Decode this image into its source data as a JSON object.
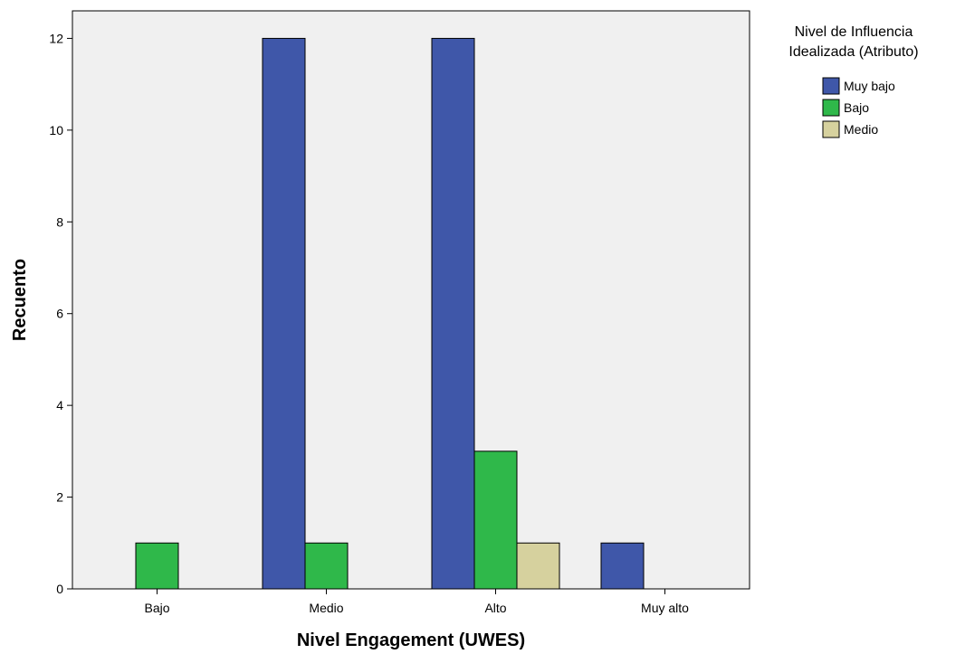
{
  "chart_data": {
    "type": "bar",
    "xlabel": "Nivel Engagement (UWES)",
    "ylabel": "Recuento",
    "categories": [
      "Bajo",
      "Medio",
      "Alto",
      "Muy alto"
    ],
    "ylim": [
      0,
      12.6
    ],
    "yticks": [
      0,
      2,
      4,
      6,
      8,
      10,
      12
    ],
    "legend": {
      "title_lines": [
        "Nivel de Influencia",
        "Idealizada (Atributo)"
      ],
      "placement": "right"
    },
    "series": [
      {
        "name": "Muy bajo",
        "color": "#3F57A9",
        "values": [
          0,
          12,
          12,
          1
        ]
      },
      {
        "name": "Bajo",
        "color": "#2FB84A",
        "values": [
          1,
          1,
          3,
          0
        ]
      },
      {
        "name": "Medio",
        "color": "#D6D19E",
        "values": [
          0,
          0,
          1,
          0
        ]
      }
    ],
    "background_color": "#F0F0F0"
  }
}
